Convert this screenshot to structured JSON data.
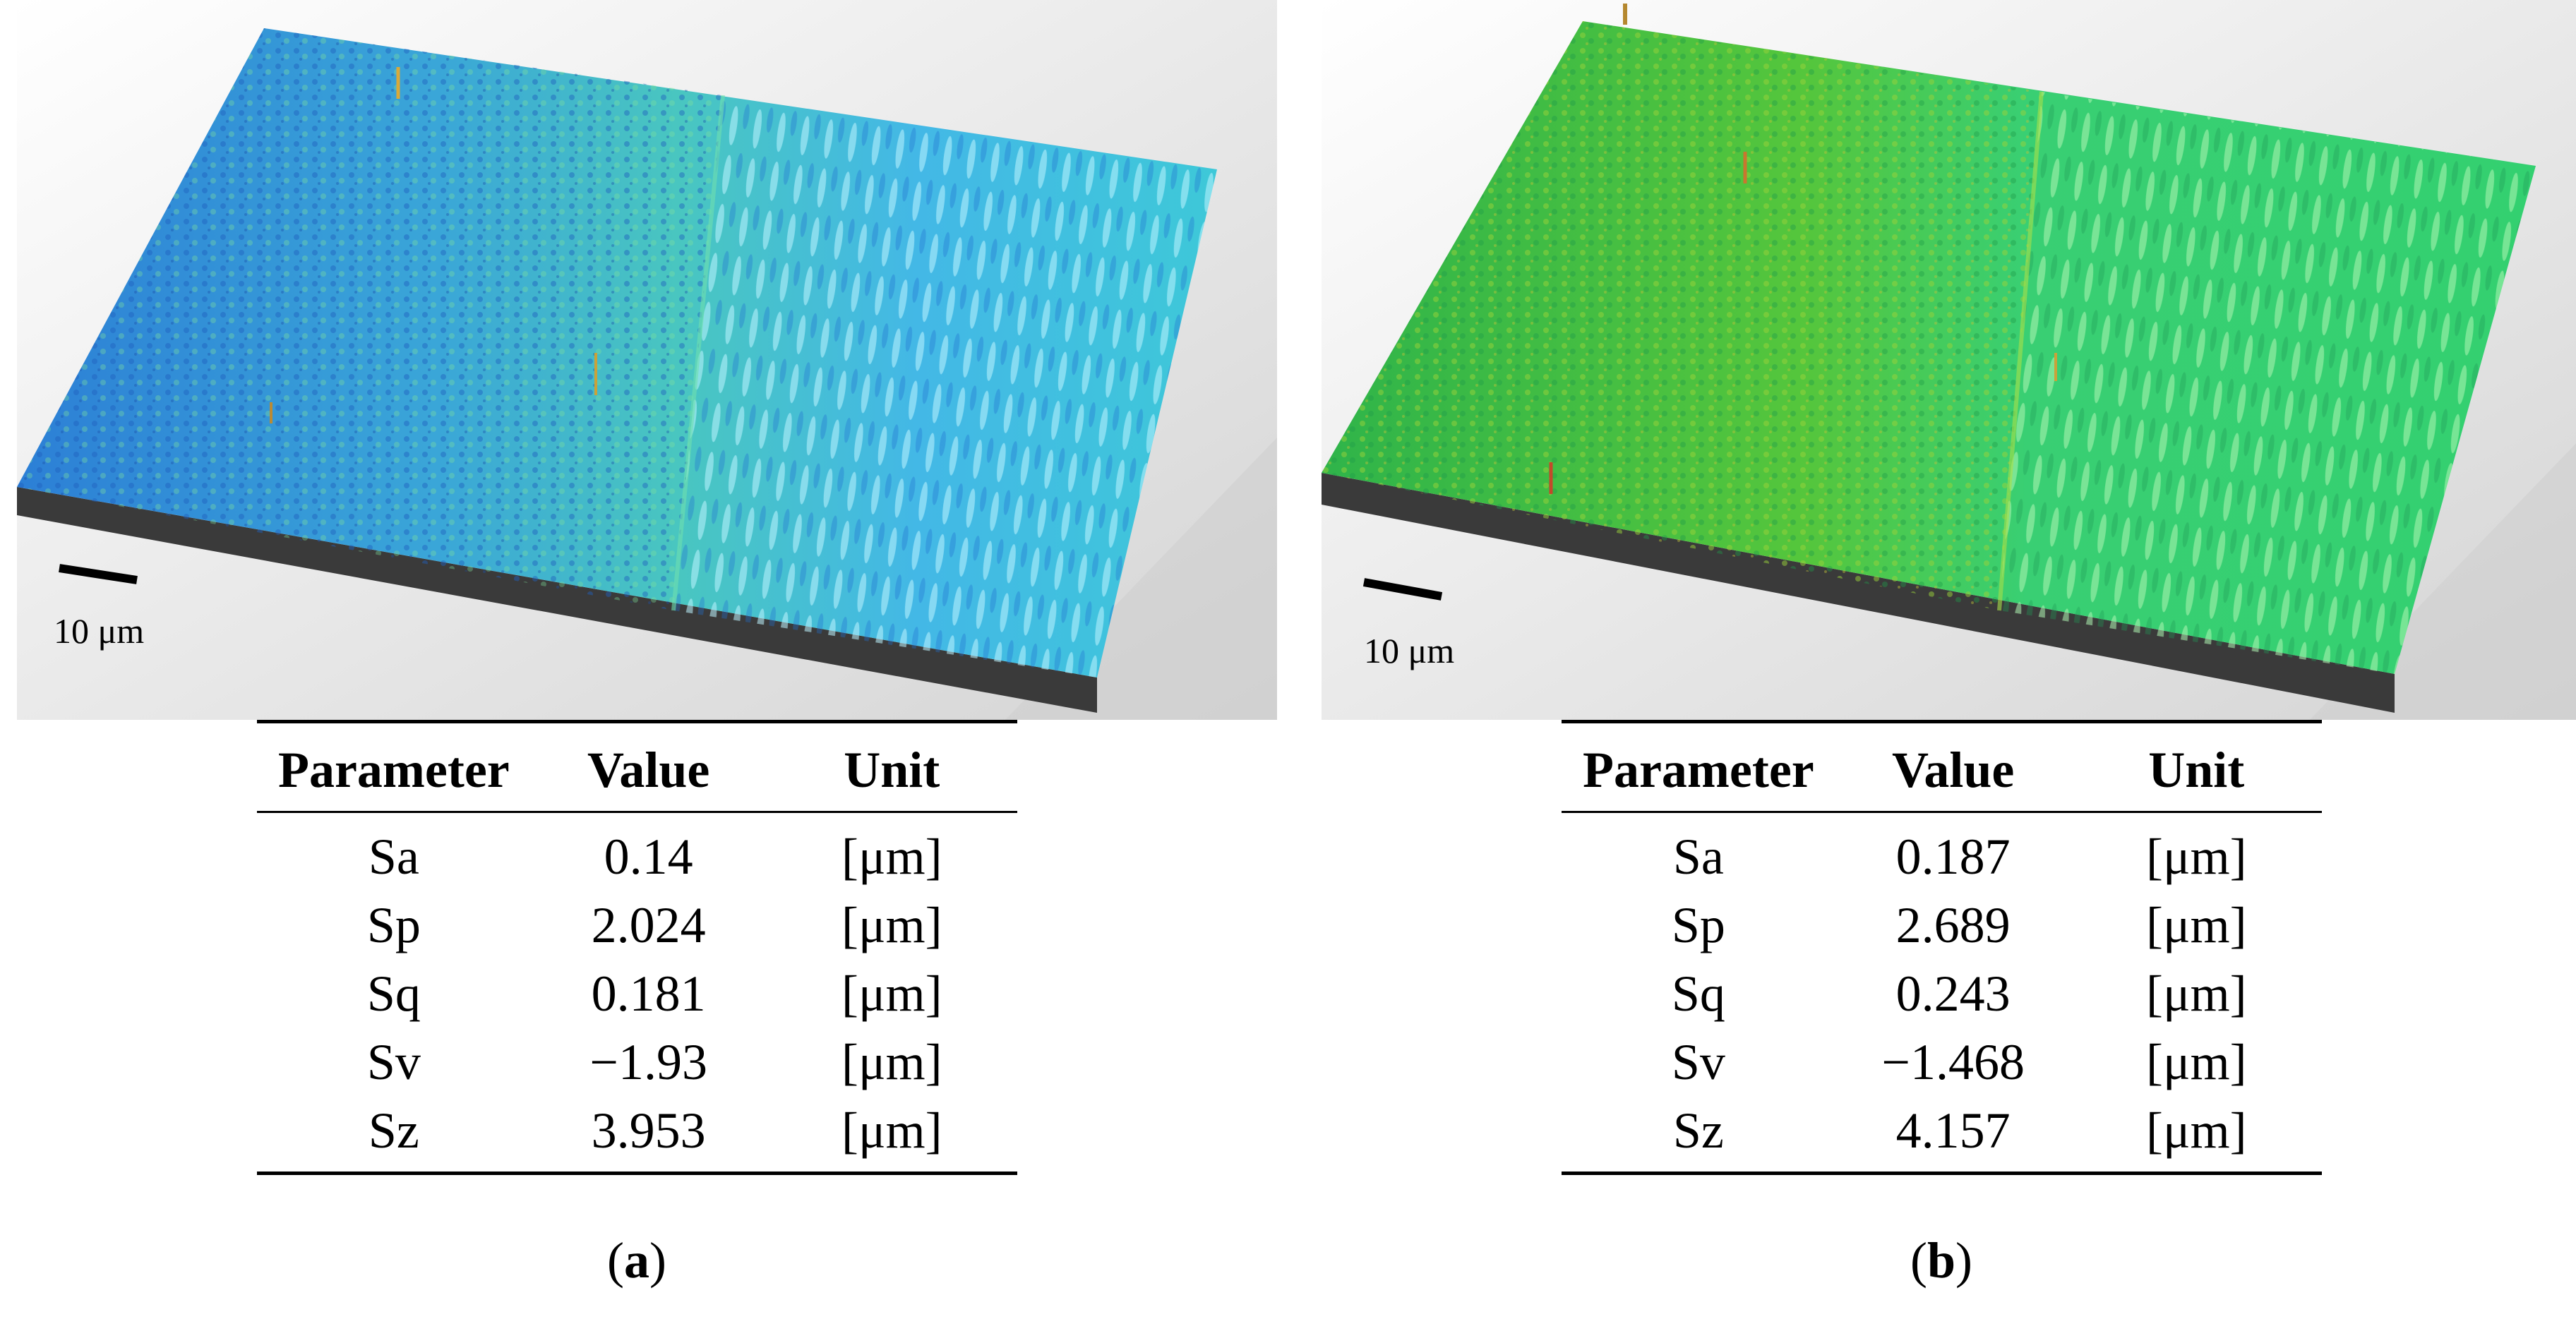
{
  "panels": [
    {
      "id": "a",
      "scale_bar_label": "10 μm",
      "colors": {
        "surface_primary": "#2f8fd8",
        "surface_secondary": "#3ec9b8",
        "surface_highlight": "#7be07a",
        "substrate": "#3a3a3a"
      },
      "table": {
        "headers": [
          "Parameter",
          "Value",
          "Unit"
        ],
        "rows": [
          {
            "parameter": "Sa",
            "value": "0.14",
            "unit": "[μm]"
          },
          {
            "parameter": "Sp",
            "value": "2.024",
            "unit": "[μm]"
          },
          {
            "parameter": "Sq",
            "value": "0.181",
            "unit": "[μm]"
          },
          {
            "parameter": "Sv",
            "value": "−1.93",
            "unit": "[μm]"
          },
          {
            "parameter": "Sz",
            "value": "3.953",
            "unit": "[μm]"
          }
        ]
      },
      "caption": {
        "open": "(",
        "letter": "a",
        "close": ")"
      }
    },
    {
      "id": "b",
      "scale_bar_label": "10 μm",
      "colors": {
        "surface_primary": "#35c36a",
        "surface_secondary": "#7fd63a",
        "surface_highlight": "#c7d83a",
        "substrate": "#3a3a3a"
      },
      "table": {
        "headers": [
          "Parameter",
          "Value",
          "Unit"
        ],
        "rows": [
          {
            "parameter": "Sa",
            "value": "0.187",
            "unit": "[μm]"
          },
          {
            "parameter": "Sp",
            "value": "2.689",
            "unit": "[μm]"
          },
          {
            "parameter": "Sq",
            "value": "0.243",
            "unit": "[μm]"
          },
          {
            "parameter": "Sv",
            "value": "−1.468",
            "unit": "[μm]"
          },
          {
            "parameter": "Sz",
            "value": "4.157",
            "unit": "[μm]"
          }
        ]
      },
      "caption": {
        "open": "(",
        "letter": "b",
        "close": ")"
      }
    }
  ]
}
